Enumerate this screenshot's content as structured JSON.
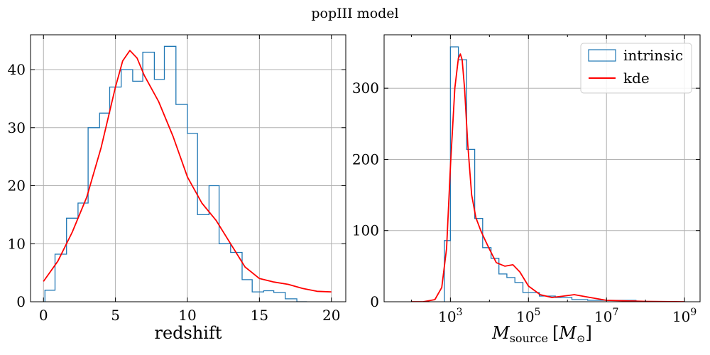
{
  "figure": {
    "suptitle": "popIII model"
  },
  "chart_data": [
    {
      "type": "histogram+line",
      "xlabel": "redshift",
      "ylabel": "",
      "xlim": [
        -0.9,
        21.0
      ],
      "ylim": [
        0,
        46
      ],
      "xticks": [
        0,
        5,
        10,
        15,
        20
      ],
      "yticks": [
        0,
        10,
        20,
        30,
        40
      ],
      "grid": true,
      "hist": {
        "name": "intrinsic",
        "color": "#1f77b4",
        "edges": [
          0.1,
          0.8,
          1.6,
          2.4,
          3.1,
          3.9,
          4.6,
          5.4,
          6.2,
          6.9,
          7.7,
          8.4,
          9.2,
          10.0,
          10.7,
          11.5,
          12.2,
          13.0,
          13.8,
          14.5,
          15.3,
          16.0,
          16.8,
          17.6,
          18.3
        ],
        "heights": [
          2.0,
          8.2,
          14.4,
          17.0,
          30.0,
          32.5,
          37.0,
          40.0,
          38.0,
          43.0,
          38.3,
          44.0,
          34.0,
          29.0,
          15.0,
          20.0,
          10.0,
          8.5,
          3.8,
          1.7,
          1.9,
          1.6,
          0.5,
          0.0
        ]
      },
      "kde": {
        "name": "kde",
        "color": "#ff0000",
        "x": [
          0.0,
          1.0,
          2.0,
          3.0,
          4.0,
          5.0,
          5.5,
          6.0,
          6.5,
          7.0,
          8.0,
          9.0,
          10.0,
          11.0,
          12.0,
          13.0,
          14.0,
          15.0,
          16.0,
          17.0,
          18.0,
          19.0,
          20.0
        ],
        "y": [
          3.5,
          7.0,
          12.0,
          18.0,
          26.5,
          37.0,
          41.5,
          43.3,
          42.0,
          39.0,
          34.5,
          28.5,
          21.5,
          17.0,
          14.0,
          10.0,
          6.0,
          4.0,
          3.4,
          3.0,
          2.3,
          1.8,
          1.7
        ]
      }
    },
    {
      "type": "histogram+line",
      "xlabel_main": "M",
      "xlabel_sub": "source",
      "xlabel_unit_open": "[",
      "xlabel_unit_main": "M",
      "xlabel_unit_sub": "⊙",
      "xlabel_unit_close": "]",
      "ylabel": "",
      "xscale": "log",
      "xlim": [
        20,
        2500000000
      ],
      "ylim": [
        0,
        375
      ],
      "xticks": [
        1000,
        100000,
        10000000,
        1000000000
      ],
      "xtick_base": "10",
      "xtick_exps": [
        "3",
        "5",
        "7",
        "9"
      ],
      "yticks": [
        0,
        100,
        200,
        300
      ],
      "grid": true,
      "legend": {
        "position": "top-right",
        "entries": [
          "intrinsic",
          "kde"
        ]
      },
      "hist": {
        "name": "intrinsic",
        "color": "#1f77b4",
        "edges": [
          700,
          1000,
          1600,
          2600,
          4200,
          6700,
          11000,
          17500,
          28000,
          45000,
          72000,
          120000,
          190000,
          490000,
          1300000,
          3300000,
          8600000,
          22000000,
          57000000,
          150000000
        ],
        "heights": [
          86,
          358,
          340,
          214,
          117,
          76,
          61,
          39,
          34,
          27,
          13,
          13,
          8,
          6,
          3,
          2,
          2,
          2,
          0
        ]
      },
      "kde": {
        "name": "kde",
        "color": "#ff0000",
        "x": [
          100,
          200,
          400,
          600,
          800,
          1000,
          1300,
          1600,
          1800,
          2000,
          2300,
          2800,
          3500,
          4500,
          6000,
          8000,
          10000,
          15000,
          25000,
          40000,
          60000,
          100000,
          200000,
          400000,
          800000,
          1500000,
          3000000,
          10000000,
          100000000,
          1000000000
        ],
        "y": [
          0,
          0,
          3,
          20,
          75,
          190,
          300,
          342,
          348,
          340,
          300,
          220,
          150,
          118,
          100,
          85,
          74,
          55,
          50,
          52,
          42,
          22,
          10,
          6,
          8,
          10,
          7,
          2,
          0.5,
          0
        ]
      }
    }
  ]
}
